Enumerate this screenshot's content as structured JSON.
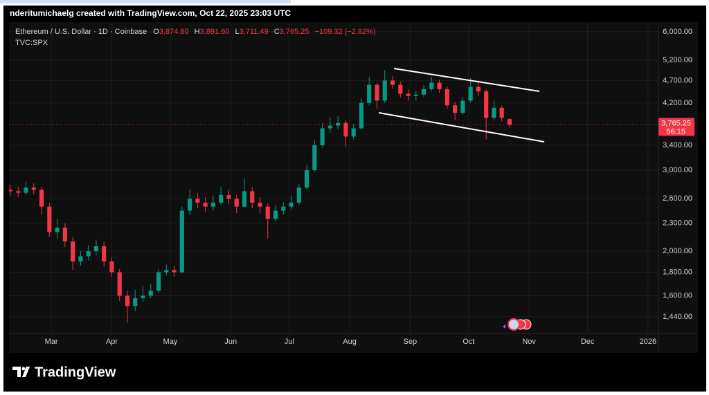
{
  "header": {
    "credit": "nderitumichaelg created with TradingView.com, Oct 22, 2025 23:03 UTC",
    "logo": "TradingView"
  },
  "chart_data": {
    "type": "candlestick",
    "title": "Ethereum / U.S. Dollar · 1D · Coinbase",
    "ohlc_labels": [
      {
        "key": "O",
        "value": "3,874.80"
      },
      {
        "key": "H",
        "value": "3,891.60"
      },
      {
        "key": "L",
        "value": "3,711.49"
      },
      {
        "key": "C",
        "value": "3,765.25"
      }
    ],
    "change": "−109.32 (−2.82%)",
    "overlay": "TVC:SPX",
    "x": [
      0,
      4,
      8,
      12,
      16,
      20,
      24,
      28,
      32,
      36,
      40,
      44,
      48,
      52,
      56,
      60,
      64,
      68,
      72,
      76,
      80,
      84,
      88,
      92,
      96,
      100,
      104,
      108,
      112,
      116,
      120,
      124,
      128,
      132,
      136,
      140,
      144,
      148,
      152,
      156,
      160,
      164,
      168,
      172,
      176,
      180,
      184,
      188,
      192,
      196,
      200,
      204,
      208,
      212,
      216,
      220,
      224,
      228,
      232,
      236,
      240,
      244,
      248,
      252,
      256
    ],
    "open": [
      2720,
      2700,
      2680,
      2750,
      2720,
      2500,
      2200,
      2250,
      2100,
      1900,
      1950,
      2000,
      2050,
      1900,
      1800,
      1600,
      1520,
      1580,
      1600,
      1640,
      1800,
      1820,
      1800,
      2450,
      2600,
      2550,
      2500,
      2550,
      2650,
      2600,
      2500,
      2700,
      2550,
      2500,
      2350,
      2450,
      2500,
      2550,
      2750,
      3000,
      3400,
      3700,
      3750,
      3800,
      3550,
      3700,
      4200,
      4600,
      4250,
      4700,
      4600,
      4400,
      4350,
      4380,
      4500,
      4650,
      4500,
      4150,
      4000,
      4250,
      4550,
      4450,
      3900,
      4100,
      3874.8
    ],
    "high": [
      2790,
      2760,
      2830,
      2810,
      2760,
      2550,
      2350,
      2300,
      2150,
      2000,
      2060,
      2120,
      2100,
      1940,
      1830,
      1640,
      1650,
      1680,
      1700,
      1830,
      1870,
      1860,
      2500,
      2720,
      2680,
      2620,
      2640,
      2760,
      2720,
      2650,
      2880,
      2760,
      2620,
      2540,
      2520,
      2560,
      2640,
      2800,
      3080,
      3480,
      3800,
      3900,
      3930,
      3850,
      3780,
      4300,
      4790,
      4650,
      4950,
      4800,
      4680,
      4500,
      4450,
      4600,
      4780,
      4720,
      4560,
      4220,
      4330,
      4760,
      4700,
      4500,
      4250,
      4150,
      3891.6
    ],
    "low": [
      2640,
      2620,
      2650,
      2660,
      2400,
      2150,
      2130,
      2040,
      1820,
      1860,
      1910,
      1960,
      1850,
      1760,
      1560,
      1400,
      1480,
      1550,
      1580,
      1620,
      1770,
      1760,
      1790,
      2400,
      2480,
      2440,
      2450,
      2520,
      2530,
      2420,
      2480,
      2480,
      2420,
      2130,
      2320,
      2400,
      2460,
      2520,
      2720,
      2970,
      3360,
      3620,
      3680,
      3380,
      3500,
      3680,
      4150,
      4080,
      4200,
      4500,
      4320,
      4250,
      4250,
      4330,
      4460,
      4420,
      4080,
      3850,
      3960,
      4200,
      4350,
      3500,
      3850,
      3830,
      3711.49
    ],
    "close": [
      2700,
      2680,
      2750,
      2720,
      2500,
      2200,
      2250,
      2100,
      1900,
      1950,
      2000,
      2050,
      1900,
      1800,
      1600,
      1520,
      1580,
      1600,
      1640,
      1800,
      1820,
      1800,
      2450,
      2600,
      2550,
      2500,
      2550,
      2650,
      2600,
      2500,
      2700,
      2550,
      2500,
      2350,
      2450,
      2500,
      2550,
      2750,
      3000,
      3400,
      3700,
      3750,
      3800,
      3550,
      3700,
      4200,
      4600,
      4250,
      4700,
      4600,
      4400,
      4350,
      4380,
      4500,
      4650,
      4500,
      4150,
      4000,
      4250,
      4550,
      4450,
      3900,
      4100,
      3900,
      3765.25
    ],
    "up_color": "#089981",
    "down_color": "#f23645",
    "xlim": [
      0,
      332
    ],
    "xticks": [
      {
        "value": 21,
        "label": "Mar"
      },
      {
        "value": 52,
        "label": "Apr"
      },
      {
        "value": 82,
        "label": "May"
      },
      {
        "value": 113,
        "label": "Jun"
      },
      {
        "value": 143,
        "label": "Jul"
      },
      {
        "value": 174,
        "label": "Aug"
      },
      {
        "value": 205,
        "label": "Sep"
      },
      {
        "value": 235,
        "label": "Oct"
      },
      {
        "value": 266,
        "label": "Nov"
      },
      {
        "value": 296,
        "label": "Dec"
      },
      {
        "value": 327,
        "label": "2026"
      }
    ],
    "log_scale": true,
    "ylim": [
      1325,
      6230
    ],
    "yticks": [
      {
        "value": 6000,
        "label": "6,000.00"
      },
      {
        "value": 5200,
        "label": "5,200.00"
      },
      {
        "value": 4700,
        "label": "4,700.00"
      },
      {
        "value": 4200,
        "label": "4,200.00"
      },
      {
        "value": 3400,
        "label": "3,400.00"
      },
      {
        "value": 3000,
        "label": "3,000.00"
      },
      {
        "value": 2600,
        "label": "2,600.00"
      },
      {
        "value": 2300,
        "label": "2,300.00"
      },
      {
        "value": 2000,
        "label": "2,000.00"
      },
      {
        "value": 1800,
        "label": "1,800.00"
      },
      {
        "value": 1600,
        "label": "1,600.00"
      },
      {
        "value": 1440,
        "label": "1,440.00"
      }
    ],
    "grid": true,
    "last_price_label": "3,765.25",
    "countdown": "56:15"
  }
}
